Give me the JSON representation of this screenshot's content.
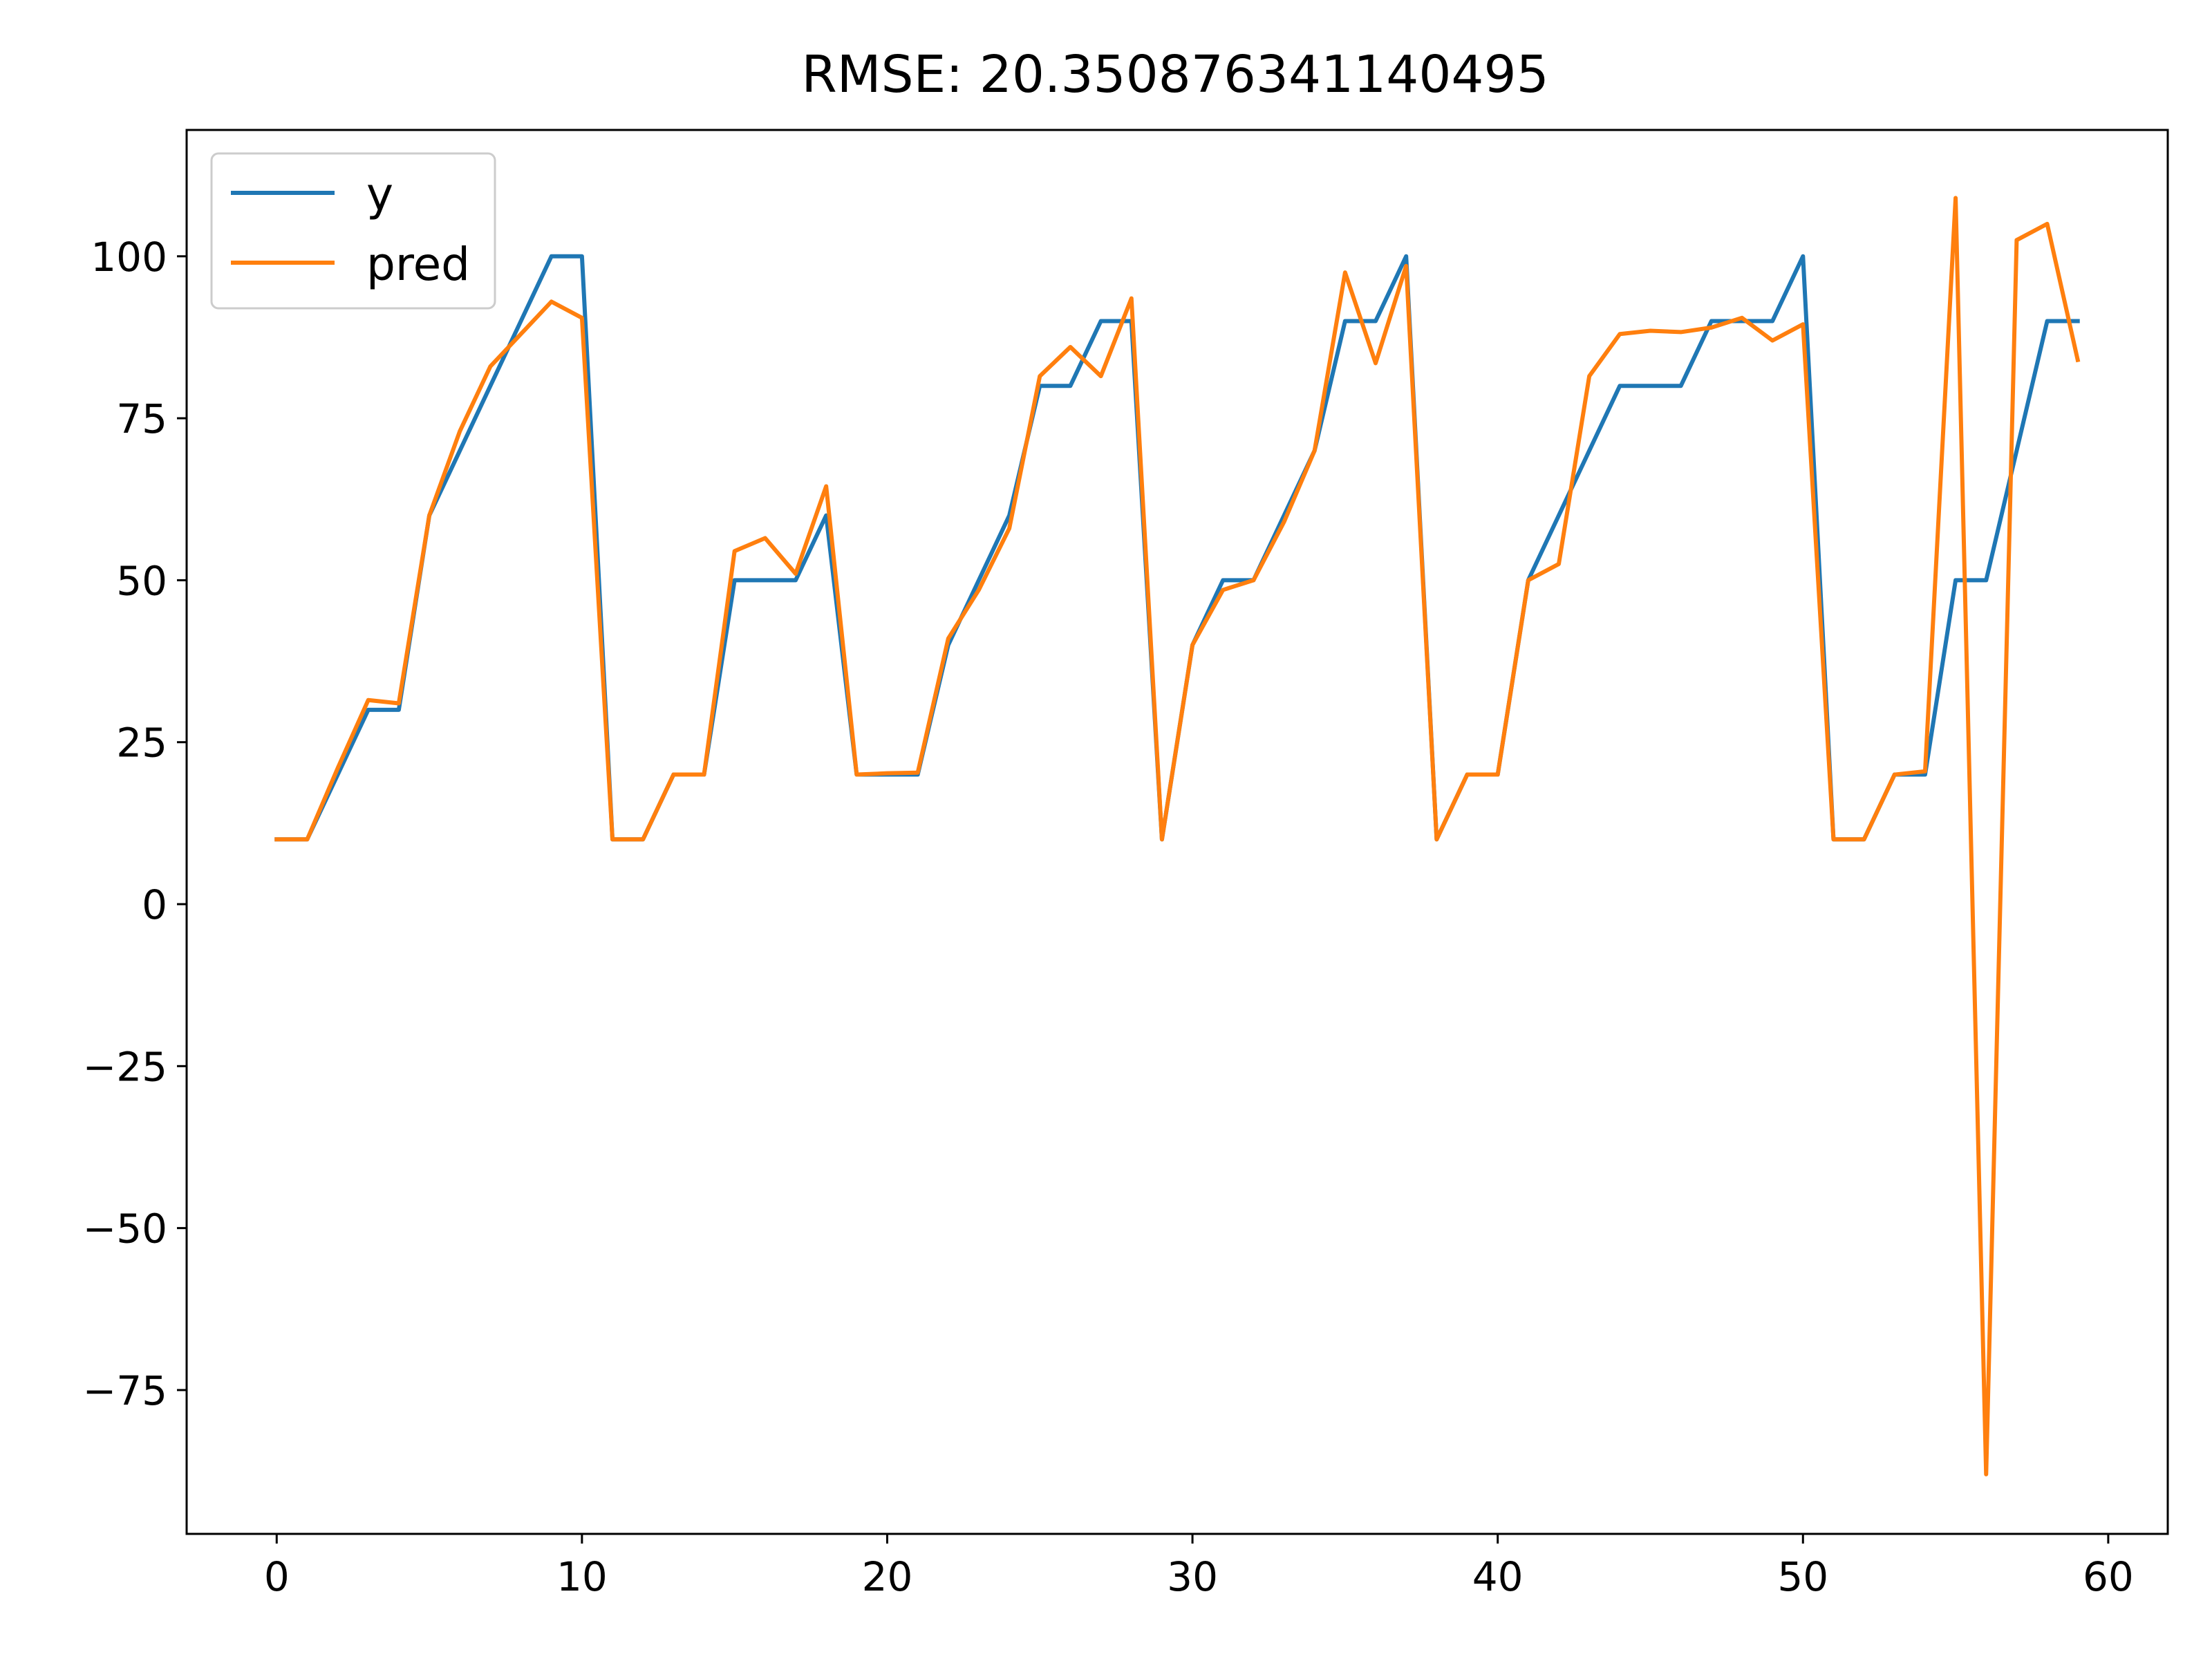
{
  "chart_data": {
    "type": "line",
    "title": "RMSE: 20.350876341140495",
    "xlabel": "",
    "ylabel": "",
    "xlim": [
      -2.95,
      61.95
    ],
    "ylim": [
      -97.2,
      119.5
    ],
    "xticks": [
      0,
      10,
      20,
      30,
      40,
      50,
      60
    ],
    "xtick_labels": [
      "0",
      "10",
      "20",
      "30",
      "40",
      "50",
      "60"
    ],
    "yticks": [
      -75,
      -50,
      -25,
      0,
      25,
      50,
      75,
      100
    ],
    "ytick_labels": [
      "−75",
      "−50",
      "−25",
      "0",
      "25",
      "50",
      "75",
      "100"
    ],
    "grid": false,
    "legend_position": "top-left",
    "x": [
      0,
      1,
      2,
      3,
      4,
      5,
      6,
      7,
      8,
      9,
      10,
      11,
      12,
      13,
      14,
      15,
      16,
      17,
      18,
      19,
      20,
      21,
      22,
      23,
      24,
      25,
      26,
      27,
      28,
      29,
      30,
      31,
      32,
      33,
      34,
      35,
      36,
      37,
      38,
      39,
      40,
      41,
      42,
      43,
      44,
      45,
      46,
      47,
      48,
      49,
      50,
      51,
      52,
      53,
      54,
      55,
      56,
      57,
      58,
      59
    ],
    "series": [
      {
        "name": "y",
        "color": "#1f77b4",
        "values": [
          10,
          10,
          20,
          30,
          30,
          60,
          70,
          80,
          90,
          100,
          100,
          10,
          10,
          20,
          20,
          50,
          50,
          50,
          60,
          20,
          20,
          20,
          40,
          50,
          60,
          80,
          80,
          90,
          90,
          10,
          40,
          50,
          50,
          60,
          70,
          90,
          90,
          100,
          10,
          20,
          20,
          50,
          60,
          70,
          80,
          80,
          80,
          90,
          90,
          90,
          100,
          10,
          10,
          20,
          20,
          50,
          50,
          70,
          90,
          90
        ]
      },
      {
        "name": "pred",
        "color": "#ff7f0e",
        "values": [
          10,
          10,
          21,
          31.5,
          31,
          60,
          73,
          83,
          88,
          93,
          90.5,
          10,
          10,
          20,
          20,
          54.5,
          56.5,
          51,
          64.5,
          20,
          20.2,
          20.3,
          41,
          48.5,
          58,
          81.5,
          86,
          81.5,
          93.5,
          10,
          40,
          48.5,
          50,
          59,
          70,
          97.5,
          83.5,
          98.5,
          10,
          20,
          20,
          50,
          52.5,
          81.5,
          88,
          88.5,
          88.3,
          89,
          90.5,
          87,
          89.5,
          10,
          10,
          20,
          20.5,
          109,
          -88,
          102.5,
          105,
          84
        ]
      }
    ]
  }
}
